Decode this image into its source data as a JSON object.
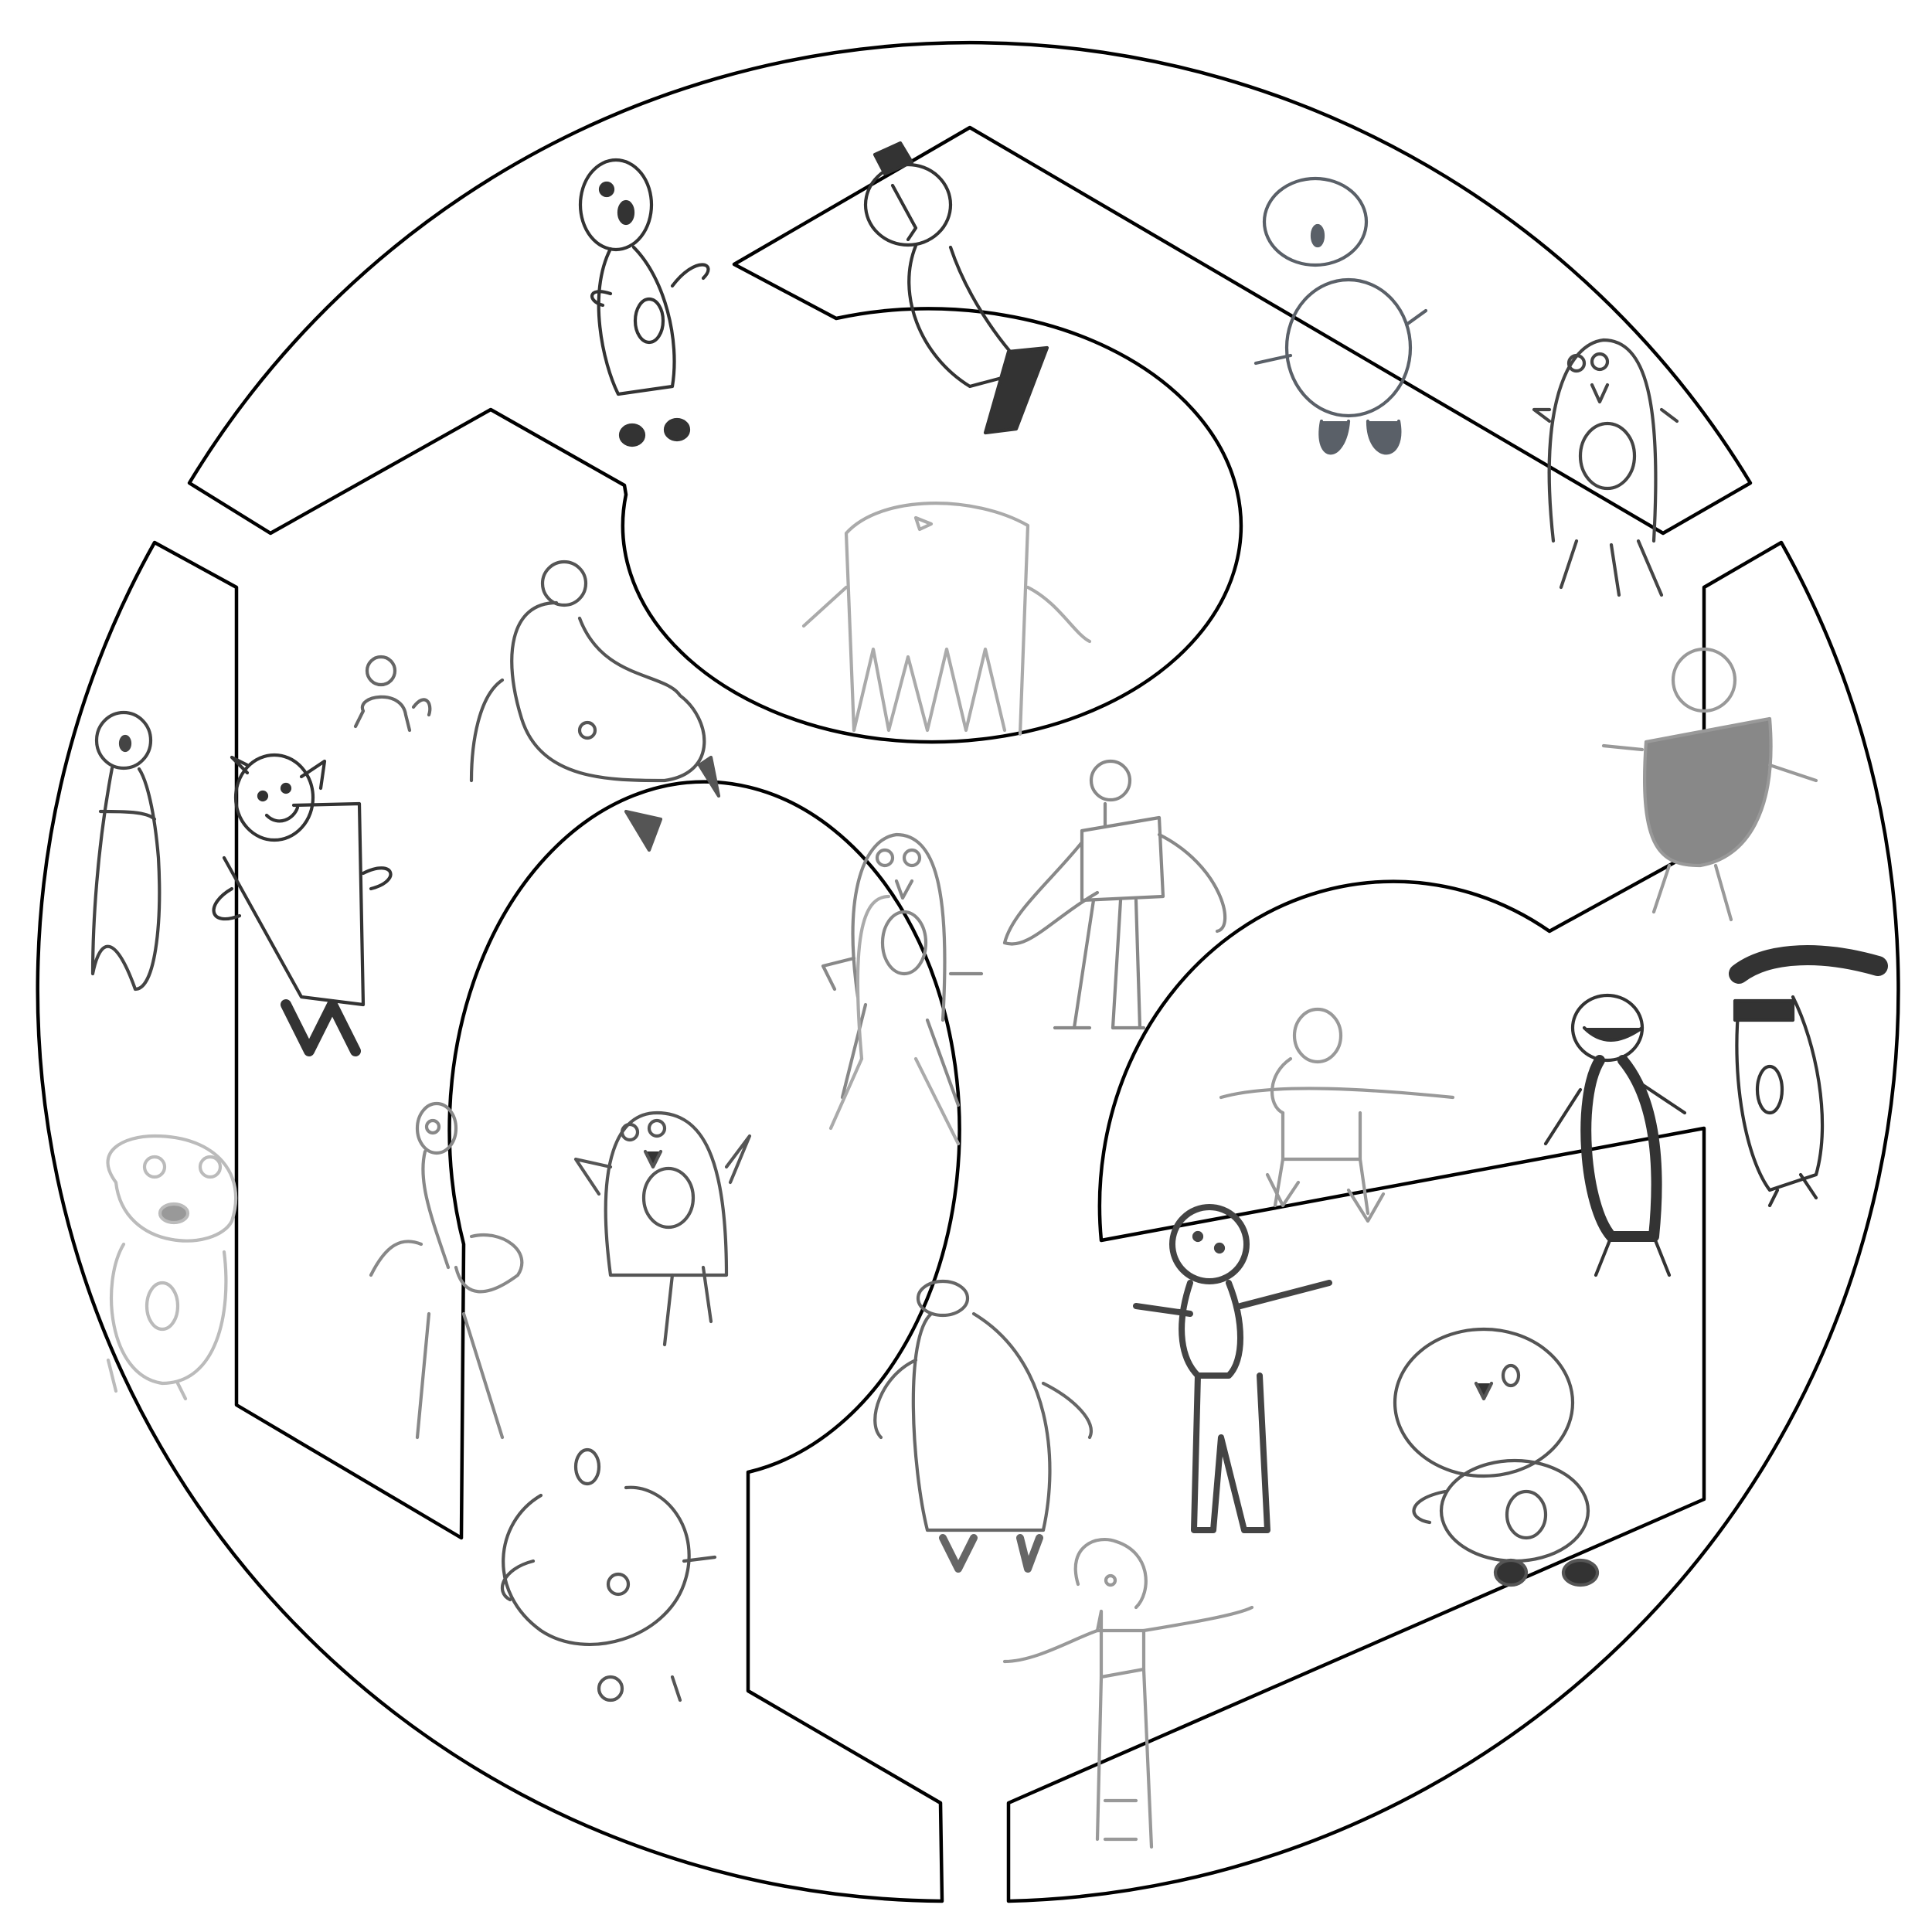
{
  "scene": {
    "stroke_color": "#000000",
    "background": "#ffffff",
    "figures": [
      {
        "icon": "blob-figure-icon",
        "shade": "#333333"
      },
      {
        "icon": "bird-figure-icon",
        "shade": "#333333"
      },
      {
        "icon": "round-body-figure-icon",
        "shade": "#5a6068"
      },
      {
        "icon": "penguin-figure-icon",
        "shade": "#444444"
      },
      {
        "icon": "jellyfish-figure-icon",
        "shade": "#aaaaaa"
      },
      {
        "icon": "big-bird-figure-icon",
        "shade": "#555555"
      },
      {
        "icon": "small-figure-icon",
        "shade": "#666666"
      },
      {
        "icon": "tall-figure-icon",
        "shade": "#444444"
      },
      {
        "icon": "cat-figure-icon",
        "shade": "#333333"
      },
      {
        "icon": "standing-penguin-icon",
        "shade": "#555555"
      },
      {
        "icon": "scribble-turtle-icon",
        "shade": "#999999"
      },
      {
        "icon": "dress-figure-icon",
        "shade": "#888888"
      },
      {
        "icon": "penguin-light-icon",
        "shade": "#888888"
      },
      {
        "icon": "stick-figure-icon",
        "shade": "#999999"
      },
      {
        "icon": "dark-figure-icon",
        "shade": "#333333"
      },
      {
        "icon": "toucan-figure-icon",
        "shade": "#333333"
      },
      {
        "icon": "bear-figure-icon",
        "shade": "#bbbbbb"
      },
      {
        "icon": "flamingo-figure-icon",
        "shade": "#888888"
      },
      {
        "icon": "chick-figure-icon",
        "shade": "#555555"
      },
      {
        "icon": "fuzzy-penguin-icon",
        "shade": "#666666"
      },
      {
        "icon": "round-head-figure-icon",
        "shade": "#444444"
      },
      {
        "icon": "egg-figure-icon",
        "shade": "#555555"
      },
      {
        "icon": "snowman-figure-icon",
        "shade": "#555555"
      },
      {
        "icon": "girl-figure-icon",
        "shade": "#999999"
      }
    ]
  }
}
